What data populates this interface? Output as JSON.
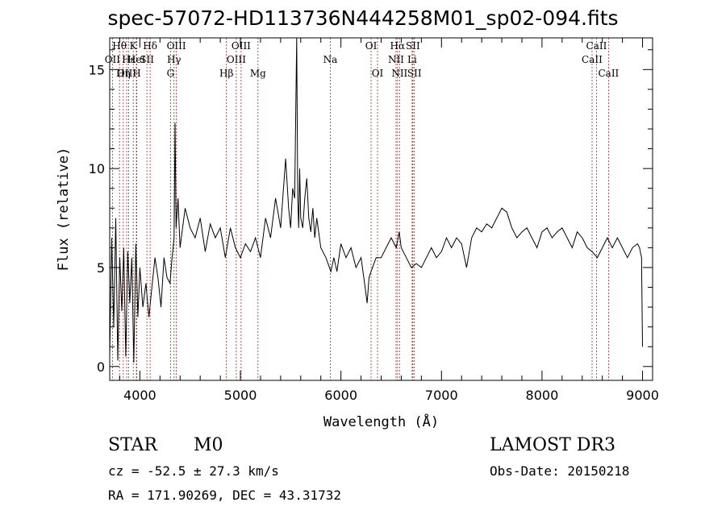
{
  "chart_data": {
    "type": "line",
    "title": "spec-57072-HD113736N444258M01_sp02-094.fits",
    "xlabel": "Wavelength (Å)",
    "ylabel": "Flux (relative)",
    "xlim": [
      3700,
      9100
    ],
    "ylim": [
      -0.7,
      16.6
    ],
    "x_ticks": [
      4000,
      5000,
      6000,
      7000,
      8000,
      9000
    ],
    "y_ticks": [
      0,
      5,
      10,
      15
    ],
    "x_tick_labels": [
      "4000",
      "5000",
      "6000",
      "7000",
      "8000",
      "9000"
    ],
    "y_tick_labels": [
      "0",
      "5",
      "10",
      "15"
    ],
    "series": [
      {
        "name": "flux",
        "x": [
          3700,
          3720,
          3740,
          3760,
          3780,
          3800,
          3820,
          3840,
          3860,
          3880,
          3900,
          3920,
          3940,
          3960,
          3980,
          4000,
          4030,
          4060,
          4090,
          4120,
          4150,
          4180,
          4210,
          4240,
          4270,
          4300,
          4320,
          4340,
          4350,
          4360,
          4380,
          4400,
          4450,
          4500,
          4550,
          4600,
          4650,
          4700,
          4750,
          4800,
          4850,
          4900,
          4950,
          5000,
          5050,
          5100,
          5150,
          5200,
          5250,
          5300,
          5350,
          5400,
          5450,
          5480,
          5500,
          5520,
          5540,
          5560,
          5570,
          5580,
          5590,
          5600,
          5620,
          5640,
          5660,
          5680,
          5700,
          5720,
          5740,
          5760,
          5800,
          5850,
          5900,
          5930,
          5960,
          6000,
          6050,
          6100,
          6150,
          6200,
          6240,
          6260,
          6280,
          6300,
          6350,
          6400,
          6450,
          6500,
          6550,
          6580,
          6600,
          6650,
          6700,
          6750,
          6800,
          6850,
          6900,
          6950,
          7000,
          7050,
          7100,
          7150,
          7200,
          7250,
          7300,
          7350,
          7400,
          7450,
          7500,
          7550,
          7600,
          7650,
          7700,
          7750,
          7800,
          7850,
          7900,
          7950,
          8000,
          8050,
          8100,
          8150,
          8200,
          8250,
          8300,
          8350,
          8400,
          8450,
          8500,
          8550,
          8600,
          8650,
          8700,
          8750,
          8800,
          8850,
          8900,
          8950,
          8970,
          8990,
          9000
        ],
        "y": [
          0.5,
          6.5,
          2.0,
          7.5,
          0.3,
          5.5,
          2.8,
          6.0,
          0.5,
          5.8,
          3.2,
          5.5,
          0.2,
          6.2,
          2.5,
          5.0,
          3.0,
          4.2,
          2.5,
          4.0,
          5.5,
          4.5,
          3.0,
          5.5,
          4.5,
          4.2,
          5.5,
          6.5,
          12.3,
          7.0,
          8.5,
          6.0,
          8.0,
          7.0,
          6.5,
          7.5,
          5.8,
          7.2,
          6.5,
          7.0,
          5.5,
          7.0,
          6.0,
          5.5,
          6.2,
          5.8,
          6.5,
          5.5,
          7.5,
          6.5,
          8.5,
          7.0,
          10.5,
          8.0,
          7.0,
          9.0,
          8.5,
          16.6,
          8.5,
          7.0,
          10.0,
          7.5,
          7.0,
          8.5,
          9.5,
          7.5,
          6.8,
          8.0,
          6.5,
          7.5,
          6.0,
          5.5,
          4.8,
          5.5,
          4.8,
          6.2,
          5.5,
          6.0,
          5.0,
          5.5,
          4.0,
          3.2,
          4.5,
          4.8,
          5.5,
          5.5,
          6.0,
          6.5,
          6.0,
          6.8,
          6.0,
          5.5,
          5.0,
          5.2,
          5.0,
          5.5,
          6.0,
          5.5,
          5.8,
          6.5,
          6.0,
          6.5,
          6.2,
          5.0,
          6.5,
          7.0,
          6.8,
          7.2,
          7.0,
          7.5,
          8.0,
          7.8,
          7.0,
          6.5,
          6.8,
          7.0,
          6.5,
          6.0,
          6.8,
          7.0,
          6.5,
          6.8,
          7.0,
          6.5,
          6.0,
          6.8,
          6.5,
          6.0,
          5.8,
          5.5,
          6.0,
          6.5,
          6.0,
          6.5,
          6.0,
          5.5,
          6.0,
          6.2,
          6.0,
          5.5,
          1.0
        ]
      }
    ],
    "line_markers": [
      {
        "label": "Hθ",
        "x": 3797,
        "row": 0
      },
      {
        "label": "OII",
        "x": 3727,
        "row": 1
      },
      {
        "label": "OIII",
        "x": 3869,
        "row": 2
      },
      {
        "label": "Hε",
        "x": 3889,
        "row": 1
      },
      {
        "label": "Hη",
        "x": 3835,
        "row": 2
      },
      {
        "label": "K",
        "x": 3934,
        "row": 0
      },
      {
        "label": "H",
        "x": 3969,
        "row": 2
      },
      {
        "label": "HeI",
        "x": 3965,
        "row": 1
      },
      {
        "label": "Hδ",
        "x": 4102,
        "row": 0
      },
      {
        "label": "SII",
        "x": 4070,
        "row": 1
      },
      {
        "label": "OIII",
        "x": 4363,
        "row": 0
      },
      {
        "label": "Hγ",
        "x": 4340,
        "row": 1
      },
      {
        "label": "G",
        "x": 4305,
        "row": 2
      },
      {
        "label": "OIII",
        "x": 5007,
        "row": 0
      },
      {
        "label": "OIII",
        "x": 4959,
        "row": 1
      },
      {
        "label": "Hβ",
        "x": 4861,
        "row": 2
      },
      {
        "label": "Mg",
        "x": 5175,
        "row": 2
      },
      {
        "label": "Na",
        "x": 5894,
        "row": 1
      },
      {
        "label": "OI",
        "x": 6300,
        "row": 0
      },
      {
        "label": "OI",
        "x": 6364,
        "row": 2
      },
      {
        "label": "Hα",
        "x": 6563,
        "row": 0
      },
      {
        "label": "SII",
        "x": 6716,
        "row": 0
      },
      {
        "label": "NII",
        "x": 6548,
        "row": 1
      },
      {
        "label": "Li",
        "x": 6708,
        "row": 1
      },
      {
        "label": "NII",
        "x": 6583,
        "row": 2
      },
      {
        "label": "SII",
        "x": 6731,
        "row": 2
      },
      {
        "label": "CaII",
        "x": 8542,
        "row": 0
      },
      {
        "label": "CaII",
        "x": 8498,
        "row": 1
      },
      {
        "label": "CaII",
        "x": 8662,
        "row": 2
      }
    ]
  },
  "info": {
    "object_class": "STAR",
    "subclass": "M0",
    "survey": "LAMOST DR3",
    "cz": "cz = -52.5 ± 27.3 km/s",
    "obs_date": "Obs-Date: 20150218",
    "coords": "RA = 171.90269, DEC =  43.31732"
  },
  "colors": {
    "line": "#000000",
    "marker": "#b22222",
    "axis": "#000000"
  }
}
